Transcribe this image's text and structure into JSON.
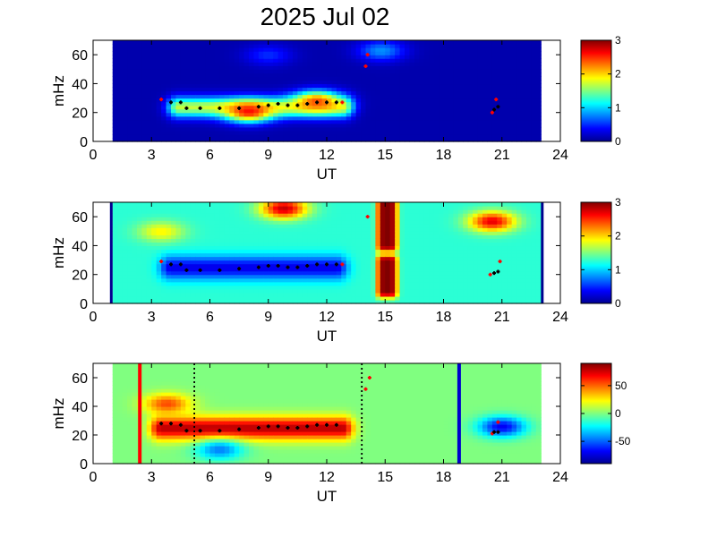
{
  "title": "2025 Jul 02",
  "colors": {
    "jet": [
      "#00008F",
      "#0000FF",
      "#0080FF",
      "#00FFFF",
      "#80FF80",
      "#FFFF00",
      "#FF8000",
      "#FF0000",
      "#800000"
    ],
    "marker_black": "#000000",
    "marker_red": "#FF0000",
    "line_red": "#FF0000",
    "line_blue": "#0000CC",
    "dotted_black": "#000000"
  },
  "chart_data": [
    {
      "type": "heatmap",
      "panel": "top",
      "xlabel": "UT",
      "ylabel": "mHz",
      "xlim": [
        0,
        24
      ],
      "ylim": [
        0,
        70
      ],
      "xticks": [
        "0",
        "3",
        "6",
        "9",
        "12",
        "15",
        "18",
        "21",
        "24"
      ],
      "yticks": [
        "0",
        "20",
        "40",
        "60"
      ],
      "data_range_ut": [
        1,
        23
      ],
      "colorbar": {
        "range": [
          0,
          3
        ],
        "ticks": [
          "0",
          "1",
          "2",
          "3"
        ]
      },
      "background_level": 0.1,
      "features": [
        {
          "kind": "band",
          "ut": [
            4.4,
            12.8
          ],
          "freq_mhz": 24,
          "width_mhz": 7,
          "level": 1.7
        },
        {
          "kind": "blob",
          "ut": 8.0,
          "freq_mhz": 21,
          "level": 2.6
        },
        {
          "kind": "blob",
          "ut": 11.5,
          "freq_mhz": 28,
          "level": 2.4
        },
        {
          "kind": "blob",
          "ut": 14.8,
          "freq_mhz": 63,
          "level": 0.8
        },
        {
          "kind": "blob",
          "ut": 9.0,
          "freq_mhz": 60,
          "level": 0.5
        }
      ],
      "tracks": [
        {
          "color": "black",
          "points": [
            [
              4.0,
              27
            ],
            [
              4.5,
              27
            ],
            [
              4.8,
              23
            ],
            [
              5.5,
              23
            ],
            [
              6.5,
              23
            ],
            [
              7.5,
              23
            ],
            [
              8.5,
              24
            ],
            [
              9.0,
              25
            ],
            [
              9.5,
              26
            ],
            [
              10.0,
              25
            ],
            [
              10.5,
              25
            ],
            [
              11.0,
              26
            ],
            [
              11.5,
              27
            ],
            [
              12.0,
              27
            ],
            [
              12.5,
              27
            ]
          ]
        },
        {
          "color": "red",
          "points": [
            [
              3.5,
              29
            ],
            [
              12.8,
              27
            ],
            [
              14.1,
              60
            ],
            [
              14.0,
              52
            ],
            [
              20.7,
              29
            ],
            [
              20.5,
              20
            ]
          ]
        },
        {
          "color": "black",
          "points": [
            [
              20.6,
              22
            ],
            [
              20.8,
              24
            ]
          ]
        }
      ]
    },
    {
      "type": "heatmap",
      "panel": "middle",
      "xlabel": "UT",
      "ylabel": "mHz",
      "xlim": [
        0,
        24
      ],
      "ylim": [
        0,
        70
      ],
      "xticks": [
        "0",
        "3",
        "6",
        "9",
        "12",
        "15",
        "18",
        "21",
        "24"
      ],
      "yticks": [
        "0",
        "20",
        "40",
        "60"
      ],
      "data_range_ut": [
        1,
        23
      ],
      "colorbar": {
        "range": [
          0,
          3
        ],
        "ticks": [
          "0",
          "1",
          "2",
          "3"
        ]
      },
      "background_level": 1.25,
      "features": [
        {
          "kind": "band",
          "ut": [
            4.0,
            12.5
          ],
          "freq_mhz": 25,
          "width_mhz": 8,
          "level": 0.3
        },
        {
          "kind": "column",
          "ut": 15.1,
          "freq_mhz": [
            40,
            70
          ],
          "level": 3.0
        },
        {
          "kind": "column",
          "ut": 15.1,
          "freq_mhz": [
            8,
            30
          ],
          "level": 3.0
        },
        {
          "kind": "blob",
          "ut": 9.8,
          "freq_mhz": 66,
          "level": 2.8
        },
        {
          "kind": "blob",
          "ut": 20.5,
          "freq_mhz": 57,
          "level": 2.7
        },
        {
          "kind": "blob",
          "ut": 3.5,
          "freq_mhz": 50,
          "level": 1.9
        }
      ],
      "tracks": [
        {
          "color": "black",
          "points": [
            [
              4.0,
              27
            ],
            [
              4.5,
              27
            ],
            [
              4.8,
              23
            ],
            [
              5.5,
              23
            ],
            [
              6.5,
              23
            ],
            [
              7.5,
              24
            ],
            [
              8.5,
              25
            ],
            [
              9.0,
              26
            ],
            [
              9.5,
              26
            ],
            [
              10.0,
              25
            ],
            [
              10.5,
              25
            ],
            [
              11.0,
              26
            ],
            [
              11.5,
              27
            ],
            [
              12.0,
              27
            ],
            [
              12.5,
              27
            ]
          ]
        },
        {
          "color": "red",
          "points": [
            [
              3.5,
              29
            ],
            [
              12.8,
              27
            ],
            [
              14.1,
              60
            ],
            [
              20.9,
              29
            ],
            [
              20.4,
              20
            ]
          ]
        },
        {
          "color": "black",
          "points": [
            [
              20.6,
              21
            ],
            [
              20.8,
              22
            ]
          ]
        }
      ]
    },
    {
      "type": "heatmap",
      "panel": "bottom",
      "xlabel": "UT",
      "ylabel": "mHz",
      "xlim": [
        0,
        24
      ],
      "ylim": [
        0,
        70
      ],
      "xticks": [
        "0",
        "3",
        "6",
        "9",
        "12",
        "15",
        "18",
        "21",
        "24"
      ],
      "yticks": [
        "0",
        "20",
        "40",
        "60"
      ],
      "data_range_ut": [
        1,
        23
      ],
      "colorbar": {
        "range": [
          -90,
          90
        ],
        "ticks": [
          "50",
          "0",
          "-50"
        ],
        "tick_values": [
          50,
          0,
          -50
        ]
      },
      "background_level": 0,
      "features": [
        {
          "kind": "band",
          "ut": [
            3.5,
            12.8
          ],
          "freq_mhz": 25,
          "width_mhz": 8,
          "level": 80
        },
        {
          "kind": "blob",
          "ut": 3.8,
          "freq_mhz": 42,
          "level": 55
        },
        {
          "kind": "blob",
          "ut": 21.0,
          "freq_mhz": 26,
          "level": -70
        },
        {
          "kind": "blob",
          "ut": 6.5,
          "freq_mhz": 10,
          "level": -45
        }
      ],
      "vertical_lines": [
        {
          "ut": 2.4,
          "color": "red",
          "style": "solid"
        },
        {
          "ut": 5.2,
          "color": "black",
          "style": "dotted"
        },
        {
          "ut": 13.8,
          "color": "black",
          "style": "dotted"
        },
        {
          "ut": 18.8,
          "color": "blue",
          "style": "solid"
        }
      ],
      "tracks": [
        {
          "color": "black",
          "points": [
            [
              3.5,
              28
            ],
            [
              4.0,
              28
            ],
            [
              4.5,
              27
            ],
            [
              4.8,
              23
            ],
            [
              5.5,
              23
            ],
            [
              6.5,
              23
            ],
            [
              7.5,
              24
            ],
            [
              8.5,
              25
            ],
            [
              9.0,
              26
            ],
            [
              9.5,
              26
            ],
            [
              10.0,
              25
            ],
            [
              10.5,
              25
            ],
            [
              11.0,
              26
            ],
            [
              11.5,
              27
            ],
            [
              12.0,
              27
            ],
            [
              12.5,
              27
            ]
          ]
        },
        {
          "color": "red",
          "points": [
            [
              14.2,
              60
            ],
            [
              14.0,
              52
            ],
            [
              20.8,
              29
            ],
            [
              20.5,
              21
            ]
          ]
        },
        {
          "color": "black",
          "points": [
            [
              20.6,
              22
            ],
            [
              20.8,
              22
            ]
          ]
        }
      ]
    }
  ]
}
